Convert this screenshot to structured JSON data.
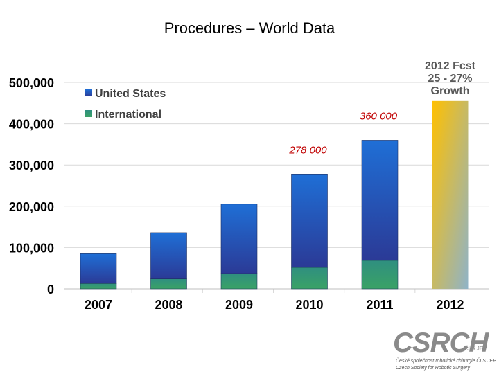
{
  "page": {
    "title": "Procedures – World Data"
  },
  "chart_data": {
    "type": "bar",
    "stacked": true,
    "categories": [
      "2007",
      "2008",
      "2009",
      "2010",
      "2011",
      "2012"
    ],
    "series": [
      {
        "name": "United States",
        "values": [
          72000,
          112000,
          168000,
          226000,
          291000,
          null
        ]
      },
      {
        "name": "International",
        "values": [
          13000,
          24000,
          37000,
          52000,
          69000,
          null
        ]
      }
    ],
    "forecast": {
      "category": "2012",
      "value": 455000,
      "label_lines": [
        "2012 Fcst",
        "25 - 27%",
        "Growth"
      ]
    },
    "annotations": [
      {
        "category": "2010",
        "text": "278 000"
      },
      {
        "category": "2011",
        "text": "360 000"
      }
    ],
    "yticks": [
      0,
      100000,
      200000,
      300000,
      400000,
      500000
    ],
    "ytick_labels": [
      "0",
      "100,000",
      "200,000",
      "300,000",
      "400,000",
      "500,000"
    ],
    "ylim": [
      0,
      500000
    ],
    "grid": true,
    "legend_position": "top-left",
    "colors": {
      "us_top": "#1f6fd6",
      "us_bottom": "#2b3a96",
      "intl_top": "#2f8f80",
      "intl_bottom": "#3aa266",
      "forecast_top": "#ffc000",
      "forecast_bottom": "#8fb3c8",
      "annotation": "#c00000",
      "forecast_text": "#595959",
      "gridline": "#d9d9d9"
    }
  },
  "logo": {
    "main": "CSRCH",
    "suffix": "ČLS JEP",
    "line1": "České společnost robotické chirurgie ČLS JEP",
    "line2": "Czech Society for Robotic Surgery"
  }
}
